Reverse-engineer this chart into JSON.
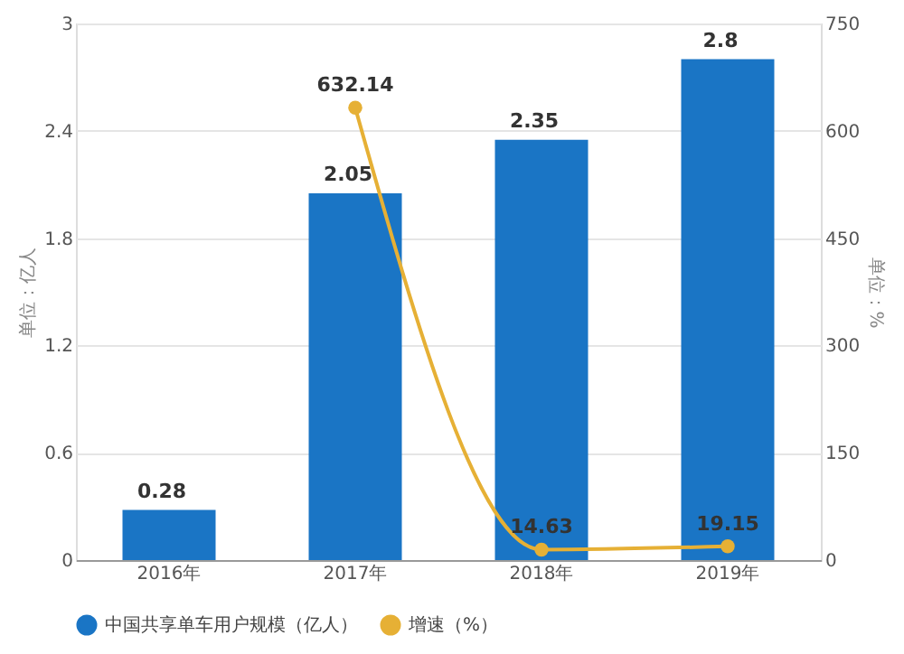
{
  "chart_data": {
    "type": "bar",
    "categories": [
      "2016年",
      "2017年",
      "2018年",
      "2019年"
    ],
    "series": [
      {
        "name": "中国共享单车用户规模（亿人）",
        "color": "#1a75c5",
        "values": [
          0.28,
          2.05,
          2.35,
          2.8
        ]
      },
      {
        "name": "增速（%）",
        "type": "line",
        "axis": "y2",
        "color": "#e6b035",
        "marker": "circle",
        "values": [
          null,
          632.14,
          14.63,
          19.15
        ]
      }
    ],
    "ylabel": "单位：亿人",
    "y2label": "单位：%",
    "ylim": [
      0,
      3
    ],
    "yticks": [
      0,
      0.6,
      1.2,
      1.8,
      2.4,
      3
    ],
    "y2lim": [
      0,
      750
    ],
    "y2ticks": [
      0,
      150,
      300,
      450,
      600,
      750
    ],
    "grid": "y",
    "legend": "bottom",
    "data_labels": true
  }
}
